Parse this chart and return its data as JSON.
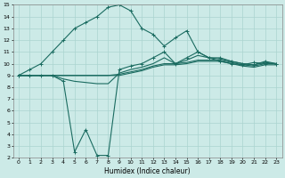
{
  "xlabel": "Humidex (Indice chaleur)",
  "background_color": "#cceae7",
  "grid_color": "#aad4d0",
  "line_color": "#1a6b60",
  "xlim": [
    -0.5,
    23.5
  ],
  "ylim": [
    2,
    15
  ],
  "xticks": [
    0,
    1,
    2,
    3,
    4,
    5,
    6,
    7,
    8,
    9,
    10,
    11,
    12,
    13,
    14,
    15,
    16,
    17,
    18,
    19,
    20,
    21,
    22,
    23
  ],
  "yticks": [
    2,
    3,
    4,
    5,
    6,
    7,
    8,
    9,
    10,
    11,
    12,
    13,
    14,
    15
  ],
  "spike_x": [
    0,
    1,
    2,
    3,
    4,
    5,
    6,
    7,
    8,
    9,
    10,
    11,
    12,
    13,
    14,
    15,
    16,
    17,
    18,
    19,
    20,
    21,
    22,
    23
  ],
  "spike_y": [
    9,
    9.5,
    10,
    11,
    12,
    13,
    13.5,
    14,
    14.8,
    15,
    14.5,
    13,
    12.5,
    11.5,
    12.2,
    12.8,
    11,
    10.5,
    10.2,
    10.0,
    9.9,
    10.1,
    10.0,
    10.0
  ],
  "dip_x": [
    0,
    1,
    2,
    3,
    4,
    5,
    6,
    7,
    8,
    9,
    10,
    11,
    12,
    13,
    14,
    15,
    16,
    17,
    18,
    19,
    20,
    21,
    22,
    23
  ],
  "dip_y": [
    9,
    9,
    9,
    9,
    8.5,
    2.5,
    4.4,
    2.2,
    2.2,
    9.5,
    9.8,
    10,
    10.5,
    11,
    10,
    10.5,
    11,
    10.5,
    10.5,
    10.2,
    10.0,
    9.9,
    10.2,
    10
  ],
  "flat1_x": [
    0,
    1,
    2,
    3,
    4,
    5,
    6,
    7,
    8,
    9,
    10,
    11,
    12,
    13,
    14,
    15,
    16,
    17,
    18,
    19,
    20,
    21,
    22,
    23
  ],
  "flat1_y": [
    9,
    9,
    9,
    9,
    8.7,
    8.5,
    8.4,
    8.3,
    8.3,
    9.2,
    9.5,
    9.7,
    10,
    10.5,
    10,
    10.3,
    10.7,
    10.5,
    10.4,
    10.2,
    10.0,
    9.9,
    10.1,
    10
  ],
  "flat2_x": [
    0,
    1,
    2,
    3,
    4,
    5,
    6,
    7,
    8,
    9,
    10,
    11,
    12,
    13,
    14,
    15,
    16,
    17,
    18,
    19,
    20,
    21,
    22,
    23
  ],
  "flat2_y": [
    9,
    9,
    9,
    9,
    9,
    9,
    9,
    9,
    9,
    9.1,
    9.3,
    9.5,
    9.8,
    10,
    10,
    10.1,
    10.3,
    10.3,
    10.3,
    10.1,
    9.9,
    9.8,
    10.0,
    10
  ],
  "flat3_x": [
    0,
    1,
    2,
    3,
    4,
    5,
    6,
    7,
    8,
    9,
    10,
    11,
    12,
    13,
    14,
    15,
    16,
    17,
    18,
    19,
    20,
    21,
    22,
    23
  ],
  "flat3_y": [
    9,
    9,
    9,
    9,
    9,
    9,
    9,
    9,
    9,
    9,
    9.2,
    9.4,
    9.7,
    9.9,
    9.9,
    10.0,
    10.2,
    10.2,
    10.2,
    10.0,
    9.8,
    9.7,
    9.9,
    9.9
  ]
}
